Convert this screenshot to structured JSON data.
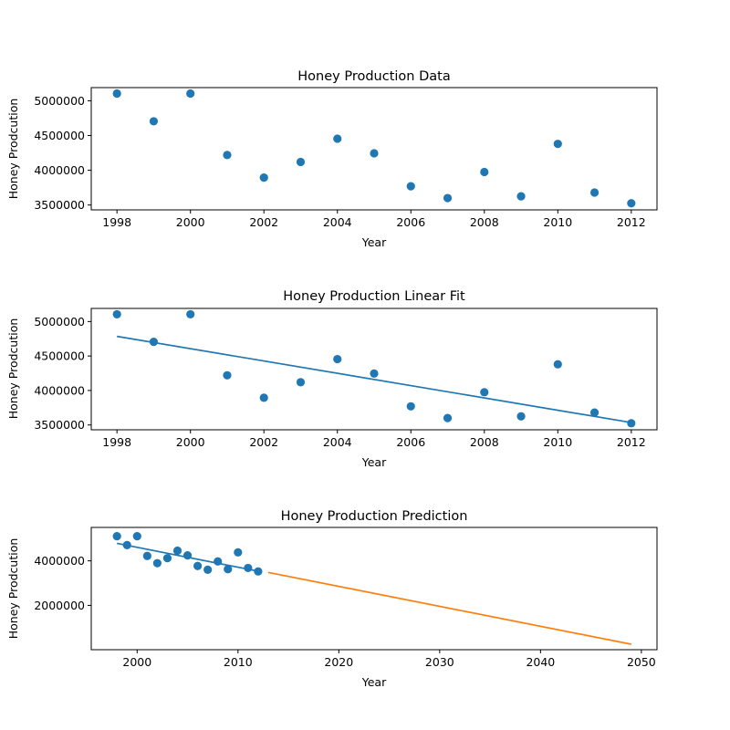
{
  "chart_data": [
    {
      "type": "scatter",
      "title": "Honey Production Data",
      "xlabel": "Year",
      "ylabel": "Honey Prodcution",
      "xlim": [
        1997.3,
        2012.7
      ],
      "ylim": [
        3430000,
        5190000
      ],
      "xticks": [
        1998,
        2000,
        2002,
        2004,
        2006,
        2008,
        2010,
        2012
      ],
      "xtick_labels": [
        "1998",
        "2000",
        "2002",
        "2004",
        "2006",
        "2008",
        "2010",
        "2012"
      ],
      "yticks": [
        3500000,
        4000000,
        4500000,
        5000000
      ],
      "ytick_labels": [
        "3500000",
        "4000000",
        "4500000",
        "5000000"
      ],
      "grid": false,
      "series": [
        {
          "kind": "scatter",
          "color": "#1f77b4",
          "x": [
            1998,
            1999,
            2000,
            2001,
            2002,
            2003,
            2004,
            2005,
            2006,
            2007,
            2008,
            2009,
            2010,
            2011,
            2012
          ],
          "y": [
            5105000,
            4705000,
            5105000,
            4220000,
            3895000,
            4120000,
            4455000,
            4245000,
            3770000,
            3600000,
            3975000,
            3625000,
            4380000,
            3680000,
            3525000
          ]
        }
      ]
    },
    {
      "type": "scatter",
      "title": "Honey Production Linear Fit",
      "xlabel": "Year",
      "ylabel": "Honey Prodcution",
      "xlim": [
        1997.3,
        2012.7
      ],
      "ylim": [
        3430000,
        5190000
      ],
      "xticks": [
        1998,
        2000,
        2002,
        2004,
        2006,
        2008,
        2010,
        2012
      ],
      "xtick_labels": [
        "1998",
        "2000",
        "2002",
        "2004",
        "2006",
        "2008",
        "2010",
        "2012"
      ],
      "yticks": [
        3500000,
        4000000,
        4500000,
        5000000
      ],
      "ytick_labels": [
        "3500000",
        "4000000",
        "4500000",
        "5000000"
      ],
      "grid": false,
      "series": [
        {
          "kind": "scatter",
          "color": "#1f77b4",
          "x": [
            1998,
            1999,
            2000,
            2001,
            2002,
            2003,
            2004,
            2005,
            2006,
            2007,
            2008,
            2009,
            2010,
            2011,
            2012
          ],
          "y": [
            5105000,
            4705000,
            5105000,
            4220000,
            3895000,
            4120000,
            4455000,
            4245000,
            3770000,
            3600000,
            3975000,
            3625000,
            4380000,
            3680000,
            3525000
          ]
        },
        {
          "kind": "line",
          "color": "#1f77b4",
          "x": [
            1998,
            2012
          ],
          "y": [
            4785000,
            3535000
          ]
        }
      ]
    },
    {
      "type": "scatter",
      "title": "Honey Production Prediction",
      "xlabel": "Year",
      "ylabel": "Honey Prodcution",
      "xlim": [
        1995.45,
        2051.55
      ],
      "ylim": [
        10000,
        5500000
      ],
      "xticks": [
        2000,
        2010,
        2020,
        2030,
        2040,
        2050
      ],
      "xtick_labels": [
        "2000",
        "2010",
        "2020",
        "2030",
        "2040",
        "2050"
      ],
      "yticks": [
        2000000,
        4000000
      ],
      "ytick_labels": [
        "2000000",
        "4000000"
      ],
      "grid": false,
      "series": [
        {
          "kind": "scatter",
          "color": "#1f77b4",
          "x": [
            1998,
            1999,
            2000,
            2001,
            2002,
            2003,
            2004,
            2005,
            2006,
            2007,
            2008,
            2009,
            2010,
            2011,
            2012
          ],
          "y": [
            5105000,
            4705000,
            5105000,
            4220000,
            3895000,
            4120000,
            4455000,
            4245000,
            3770000,
            3600000,
            3975000,
            3625000,
            4380000,
            3680000,
            3525000
          ]
        },
        {
          "kind": "line",
          "color": "#1f77b4",
          "x": [
            1998,
            2012
          ],
          "y": [
            4785000,
            3535000
          ]
        },
        {
          "kind": "line",
          "color": "#ff7f0e",
          "x": [
            2013,
            2049
          ],
          "y": [
            3480000,
            255000
          ]
        }
      ]
    }
  ]
}
